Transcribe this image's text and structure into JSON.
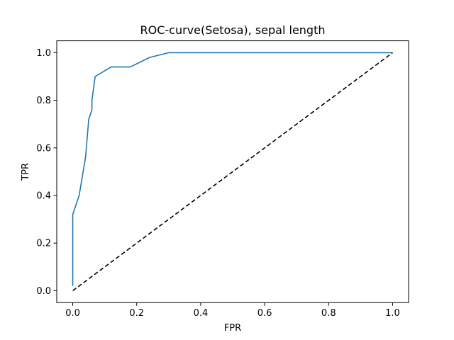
{
  "chart_data": {
    "type": "line",
    "title": "ROC-curve(Setosa), sepal length",
    "xlabel": "FPR",
    "ylabel": "TPR",
    "xlim": [
      -0.05,
      1.05
    ],
    "ylim": [
      -0.05,
      1.05
    ],
    "xticks": [
      0.0,
      0.2,
      0.4,
      0.6,
      0.8,
      1.0
    ],
    "xtick_labels": [
      "0.0",
      "0.2",
      "0.4",
      "0.6",
      "0.8",
      "1.0"
    ],
    "yticks": [
      0.0,
      0.2,
      0.4,
      0.6,
      0.8,
      1.0
    ],
    "ytick_labels": [
      "0.0",
      "0.2",
      "0.4",
      "0.6",
      "0.8",
      "1.0"
    ],
    "grid": false,
    "series": [
      {
        "color": "#1f77b4",
        "style": "solid",
        "x": [
          0.0,
          0.0,
          0.0,
          0.02,
          0.03,
          0.04,
          0.05,
          0.06,
          0.06,
          0.07,
          0.12,
          0.18,
          0.24,
          0.3,
          0.4,
          1.0
        ],
        "y": [
          0.02,
          0.28,
          0.32,
          0.4,
          0.48,
          0.56,
          0.72,
          0.76,
          0.8,
          0.9,
          0.94,
          0.94,
          0.98,
          1.0,
          1.0,
          1.0
        ]
      },
      {
        "color": "#000000",
        "style": "dashed",
        "x": [
          0.0,
          1.0
        ],
        "y": [
          0.0,
          1.0
        ]
      }
    ]
  }
}
